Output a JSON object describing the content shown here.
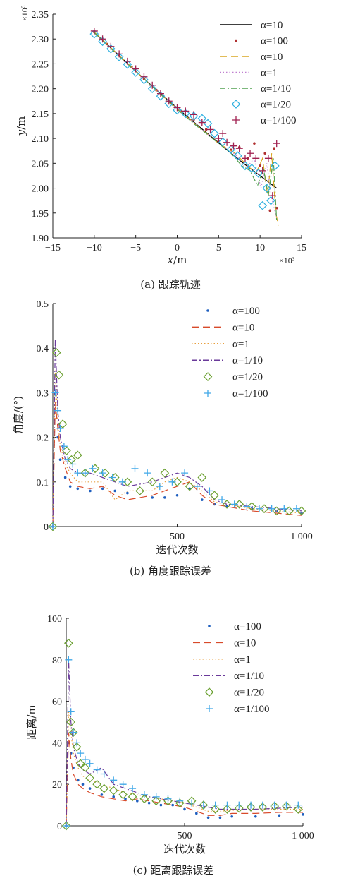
{
  "chart_data": [
    {
      "type": "line",
      "caption": "(a) 跟踪轨迹",
      "xlabel_sym": "x",
      "xlabel_unit": "/m",
      "ylabel_sym": "y",
      "ylabel_unit": "/m",
      "x_multiplier": "×10³",
      "y_multiplier": "×10³",
      "xlim": [
        -15,
        15
      ],
      "ylim": [
        1.9,
        2.35
      ],
      "xticks": [
        "−15",
        "−10",
        "−5",
        "0",
        "5",
        "10",
        "15"
      ],
      "yticks": [
        "1.90",
        "1.95",
        "2.00",
        "2.05",
        "2.10",
        "2.15",
        "2.20",
        "2.25",
        "2.30",
        "2.35"
      ],
      "legend_position": "top-right",
      "series": [
        {
          "name": "α=10",
          "style": "solid",
          "color": "#000000",
          "x": [
            -10,
            -8,
            -6,
            -4,
            -2,
            0,
            2,
            4,
            6,
            8,
            10,
            12
          ],
          "y": [
            2.313,
            2.282,
            2.251,
            2.22,
            2.19,
            2.161,
            2.133,
            2.105,
            2.077,
            2.05,
            2.025,
            2.0
          ]
        },
        {
          "name": "α=100",
          "style": "dots",
          "color": "#b03030",
          "x": [
            -10,
            -8.5,
            -7,
            -5.5,
            -4,
            -2.5,
            -1,
            0.5,
            2,
            3.5,
            5,
            6.5,
            7.5,
            8.5,
            9.3,
            10,
            10.6,
            11.2,
            11.7,
            12
          ],
          "y": [
            2.314,
            2.29,
            2.267,
            2.244,
            2.22,
            2.197,
            2.175,
            2.155,
            2.138,
            2.118,
            2.095,
            2.077,
            2.082,
            2.06,
            2.09,
            2.045,
            2.07,
            1.955,
            2.08,
            1.96
          ]
        },
        {
          "name": "α=10",
          "style": "longdash",
          "color": "#d9a520",
          "x": [
            -10,
            -7,
            -4,
            -1,
            2,
            5,
            7,
            8.5,
            9.5,
            10.3,
            10.9,
            11.4,
            11.9,
            12.2
          ],
          "y": [
            2.314,
            2.267,
            2.22,
            2.174,
            2.132,
            2.09,
            2.07,
            2.045,
            2.03,
            2.06,
            1.985,
            2.07,
            1.95,
            1.925
          ]
        },
        {
          "name": "α=1",
          "style": "dotted",
          "color": "#c080d0",
          "x": [
            -10,
            -7,
            -4,
            -1,
            2,
            5,
            7,
            8.3,
            9.3,
            10.1,
            10.8,
            11.4,
            12
          ],
          "y": [
            2.312,
            2.266,
            2.221,
            2.176,
            2.133,
            2.09,
            2.068,
            2.04,
            2.06,
            2.0,
            2.05,
            1.98,
            1.94
          ]
        },
        {
          "name": "α=1/10",
          "style": "dashdot",
          "color": "#50a050",
          "x": [
            -10,
            -7,
            -4,
            -1,
            2,
            5,
            6.5,
            7.8,
            8.8,
            9.7,
            10.4,
            11,
            11.6,
            12
          ],
          "y": [
            2.313,
            2.265,
            2.22,
            2.173,
            2.13,
            2.09,
            2.07,
            2.045,
            2.035,
            2.005,
            2.04,
            1.985,
            2.06,
            1.935
          ]
        },
        {
          "name": "α=1/20",
          "style": "diamond",
          "color": "#30b0e0",
          "x": [
            -10,
            -9,
            -8,
            -7,
            -6,
            -5,
            -4,
            -3,
            -2,
            -1,
            0,
            1,
            2,
            3,
            3.7,
            4.5,
            5.5,
            6.5,
            7.3,
            8.2,
            9,
            9.8,
            10.3,
            10.8,
            11.3,
            11.8
          ],
          "y": [
            2.31,
            2.295,
            2.28,
            2.264,
            2.249,
            2.233,
            2.218,
            2.2,
            2.185,
            2.17,
            2.157,
            2.15,
            2.145,
            2.14,
            2.13,
            2.11,
            2.093,
            2.078,
            2.065,
            2.045,
            2.04,
            2.03,
            1.965,
            2.0,
            1.975,
            2.045
          ]
        },
        {
          "name": "α=1/100",
          "style": "plus",
          "color": "#a02050",
          "x": [
            -10,
            -9,
            -8,
            -7,
            -6,
            -5,
            -4,
            -3,
            -2,
            -1,
            0,
            1,
            2,
            3,
            4,
            5,
            5.5,
            6,
            6.8,
            7.5,
            8.2,
            8.8,
            9.5,
            10.3,
            11,
            11.5,
            12
          ],
          "y": [
            2.316,
            2.3,
            2.285,
            2.27,
            2.255,
            2.24,
            2.224,
            2.207,
            2.19,
            2.175,
            2.162,
            2.155,
            2.148,
            2.132,
            2.118,
            2.1,
            2.11,
            2.092,
            2.085,
            2.08,
            2.06,
            2.07,
            2.06,
            2.035,
            2.06,
            1.985,
            2.09
          ]
        }
      ]
    },
    {
      "type": "line",
      "caption": "(b) 角度跟踪误差",
      "xlabel": "迭代次数",
      "ylabel": "角度/(°)",
      "xlim": [
        0,
        1000
      ],
      "ylim": [
        0,
        0.5
      ],
      "xticks": [
        "500",
        "1 000"
      ],
      "yticks": [
        "0",
        "0.1",
        "0.2",
        "0.3",
        "0.4",
        "0.5"
      ],
      "legend_position": "top-right",
      "series": [
        {
          "name": "α=100",
          "style": "dots",
          "color": "#1f5fbf",
          "x": [
            0,
            10,
            20,
            30,
            50,
            70,
            100,
            150,
            200,
            250,
            300,
            400,
            450,
            500,
            550,
            600,
            650,
            700,
            800,
            900,
            1000
          ],
          "y": [
            0,
            0.3,
            0.2,
            0.15,
            0.11,
            0.09,
            0.085,
            0.08,
            0.085,
            0.08,
            0.075,
            0.065,
            0.065,
            0.07,
            0.085,
            0.06,
            0.05,
            0.045,
            0.04,
            0.035,
            0.03
          ]
        },
        {
          "name": "α=10",
          "style": "longdash",
          "color": "#d84a2a",
          "x": [
            0,
            10,
            20,
            30,
            50,
            70,
            100,
            150,
            200,
            250,
            300,
            400,
            450,
            500,
            550,
            600,
            650,
            700,
            800,
            900,
            1000
          ],
          "y": [
            0,
            0.28,
            0.22,
            0.17,
            0.13,
            0.1,
            0.09,
            0.085,
            0.09,
            0.07,
            0.06,
            0.07,
            0.08,
            0.09,
            0.1,
            0.07,
            0.05,
            0.045,
            0.035,
            0.03,
            0.025
          ]
        },
        {
          "name": "α=1",
          "style": "dotted",
          "color": "#e8a040",
          "x": [
            0,
            10,
            20,
            30,
            50,
            70,
            100,
            150,
            200,
            250,
            300,
            400,
            450,
            500,
            550,
            600,
            650,
            700,
            800,
            900,
            1000
          ],
          "y": [
            0,
            0.35,
            0.24,
            0.18,
            0.14,
            0.12,
            0.1,
            0.1,
            0.1,
            0.06,
            0.08,
            0.08,
            0.1,
            0.11,
            0.1,
            0.08,
            0.055,
            0.05,
            0.04,
            0.035,
            0.03
          ]
        },
        {
          "name": "α=1/10",
          "style": "dashdot",
          "color": "#6a3a9a",
          "x": [
            0,
            10,
            20,
            30,
            50,
            70,
            100,
            150,
            200,
            250,
            300,
            400,
            450,
            500,
            550,
            600,
            650,
            700,
            800,
            900,
            1000
          ],
          "y": [
            0,
            0.42,
            0.26,
            0.2,
            0.15,
            0.13,
            0.12,
            0.12,
            0.11,
            0.1,
            0.09,
            0.1,
            0.11,
            0.12,
            0.11,
            0.09,
            0.06,
            0.05,
            0.045,
            0.04,
            0.035
          ]
        },
        {
          "name": "α=1/20",
          "style": "diamond",
          "color": "#6aa030",
          "x": [
            0,
            15,
            25,
            40,
            55,
            75,
            100,
            130,
            170,
            210,
            250,
            300,
            350,
            400,
            450,
            500,
            550,
            600,
            650,
            700,
            750,
            800,
            850,
            900,
            950,
            1000
          ],
          "y": [
            0,
            0.39,
            0.34,
            0.23,
            0.17,
            0.15,
            0.16,
            0.12,
            0.13,
            0.12,
            0.11,
            0.1,
            0.08,
            0.1,
            0.12,
            0.1,
            0.09,
            0.11,
            0.07,
            0.05,
            0.05,
            0.045,
            0.04,
            0.035,
            0.035,
            0.035
          ]
        },
        {
          "name": "α=1/100",
          "style": "plus",
          "color": "#40a8e8",
          "x": [
            0,
            10,
            20,
            30,
            45,
            60,
            80,
            100,
            130,
            160,
            200,
            240,
            280,
            330,
            380,
            430,
            480,
            530,
            580,
            630,
            680,
            730,
            780,
            830,
            880,
            930,
            980
          ],
          "y": [
            0,
            0.3,
            0.26,
            0.22,
            0.18,
            0.15,
            0.14,
            0.12,
            0.12,
            0.13,
            0.12,
            0.11,
            0.1,
            0.13,
            0.12,
            0.09,
            0.1,
            0.12,
            0.09,
            0.08,
            0.06,
            0.05,
            0.045,
            0.04,
            0.04,
            0.04,
            0.04
          ]
        }
      ]
    },
    {
      "type": "line",
      "caption": "(c) 距离跟踪误差",
      "xlabel": "迭代次数",
      "ylabel": "距离/m",
      "xlim": [
        0,
        1000
      ],
      "ylim": [
        0,
        100
      ],
      "xticks": [
        "500",
        "1 000"
      ],
      "yticks": [
        "0",
        "20",
        "40",
        "60",
        "80",
        "100"
      ],
      "legend_position": "top-right",
      "series": [
        {
          "name": "α=100",
          "style": "dots",
          "color": "#1f5fbf",
          "x": [
            0,
            10,
            20,
            30,
            50,
            70,
            100,
            150,
            200,
            250,
            300,
            350,
            400,
            450,
            500,
            550,
            600,
            650,
            700,
            800,
            900,
            1000
          ],
          "y": [
            0,
            40,
            35,
            28,
            22,
            20,
            18,
            15,
            14,
            13,
            12,
            11,
            10,
            10,
            8,
            6,
            4,
            4,
            4.5,
            4.5,
            5,
            5.5
          ]
        },
        {
          "name": "α=10",
          "style": "longdash",
          "color": "#d84a2a",
          "x": [
            0,
            10,
            20,
            30,
            50,
            70,
            100,
            150,
            200,
            250,
            300,
            350,
            400,
            450,
            500,
            550,
            600,
            650,
            700,
            800,
            900,
            1000
          ],
          "y": [
            0,
            45,
            32,
            25,
            20,
            18,
            16,
            14,
            13,
            12,
            13,
            12,
            11,
            10,
            9,
            7,
            5,
            5,
            6,
            6,
            6.5,
            6.5
          ]
        },
        {
          "name": "α=1",
          "style": "dotted",
          "color": "#e8a040",
          "x": [
            0,
            10,
            20,
            30,
            50,
            70,
            100,
            150,
            200,
            250,
            300,
            350,
            400,
            450,
            500,
            550,
            600,
            650,
            700,
            800,
            900,
            1000
          ],
          "y": [
            0,
            55,
            45,
            35,
            28,
            24,
            22,
            20,
            18,
            16,
            15,
            14,
            13,
            12,
            11,
            9,
            7,
            7,
            7.5,
            8,
            8,
            8
          ]
        },
        {
          "name": "α=1/10",
          "style": "dashdot",
          "color": "#6a3a9a",
          "x": [
            0,
            10,
            20,
            30,
            50,
            70,
            100,
            150,
            200,
            250,
            300,
            350,
            400,
            450,
            500,
            550,
            600,
            650,
            700,
            800,
            900,
            1000
          ],
          "y": [
            0,
            80,
            50,
            38,
            30,
            27,
            25,
            28,
            20,
            18,
            16,
            14,
            13,
            12,
            11,
            10,
            9,
            8,
            8,
            8,
            8.5,
            9
          ]
        },
        {
          "name": "α=1/20",
          "style": "diamond",
          "color": "#6aa030",
          "x": [
            0,
            10,
            20,
            30,
            45,
            60,
            80,
            100,
            130,
            160,
            200,
            240,
            280,
            330,
            380,
            430,
            480,
            530,
            580,
            630,
            680,
            730,
            780,
            830,
            880,
            930,
            980
          ],
          "y": [
            0,
            88,
            50,
            45,
            38,
            30,
            28,
            23,
            20,
            18,
            17,
            15,
            14,
            13,
            12,
            12,
            11,
            12,
            10,
            8,
            8,
            8.5,
            9,
            9,
            9.5,
            9.5,
            8
          ]
        },
        {
          "name": "α=1/100",
          "style": "plus",
          "color": "#40a8e8",
          "x": [
            0,
            10,
            20,
            30,
            45,
            60,
            80,
            100,
            130,
            160,
            200,
            240,
            280,
            330,
            380,
            430,
            480,
            530,
            580,
            630,
            680,
            730,
            780,
            830,
            880,
            930,
            980
          ],
          "y": [
            0,
            80,
            55,
            45,
            40,
            35,
            32,
            30,
            27,
            25,
            22,
            20,
            18,
            15,
            14,
            13,
            12,
            11,
            10,
            10,
            10,
            10,
            10,
            10,
            10,
            10,
            10
          ]
        }
      ]
    }
  ]
}
